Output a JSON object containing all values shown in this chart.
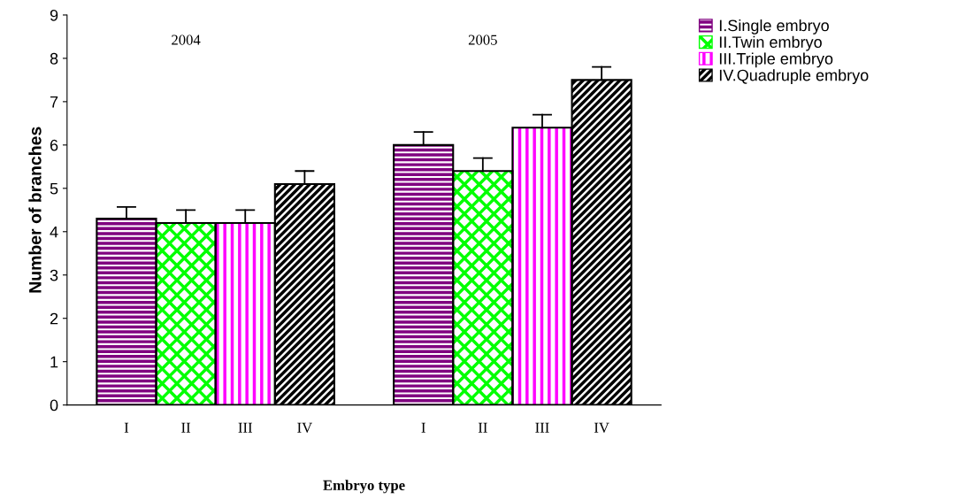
{
  "chart_data": {
    "type": "bar",
    "xlabel": "Embryo type",
    "ylabel": "Number of branches",
    "categories": [
      "I",
      "II",
      "III",
      "IV",
      null,
      "I",
      "II",
      "III",
      "IV"
    ],
    "series": [
      {
        "name": "I.Single embryo",
        "color": "#800080",
        "values": [
          4.3,
          null,
          null,
          null,
          null,
          6.0,
          null,
          null,
          null
        ],
        "errors": [
          [
            4.3,
            4.57
          ],
          null,
          null,
          null,
          null,
          [
            6.0,
            6.3
          ],
          null,
          null,
          null
        ]
      },
      {
        "name": "II.Twin embryo",
        "color": "#00ff00",
        "values": [
          null,
          4.2,
          null,
          null,
          null,
          null,
          5.4,
          null,
          null
        ],
        "errors": [
          null,
          [
            4.2,
            4.5
          ],
          null,
          null,
          null,
          null,
          [
            5.4,
            5.7
          ],
          null,
          null
        ]
      },
      {
        "name": "III.Triple embryo",
        "color": "#ff00ff",
        "values": [
          null,
          null,
          4.2,
          null,
          null,
          null,
          null,
          6.4,
          null
        ],
        "errors": [
          null,
          null,
          [
            4.2,
            4.5
          ],
          null,
          null,
          null,
          null,
          [
            6.4,
            6.7
          ],
          null
        ]
      },
      {
        "name": "IV.Quadruple embryo",
        "color": "#000000",
        "values": [
          null,
          null,
          null,
          5.1,
          null,
          null,
          null,
          null,
          7.5
        ],
        "errors": [
          null,
          null,
          null,
          [
            5.1,
            5.4
          ],
          null,
          null,
          null,
          null,
          [
            7.5,
            7.8
          ]
        ]
      }
    ],
    "annotations": [
      "2004",
      "2005"
    ],
    "ylim": [
      0,
      9
    ],
    "yticks": [
      0,
      1,
      2,
      3,
      4,
      5,
      6,
      7,
      8,
      9
    ],
    "grid": false,
    "legend": "top right"
  }
}
